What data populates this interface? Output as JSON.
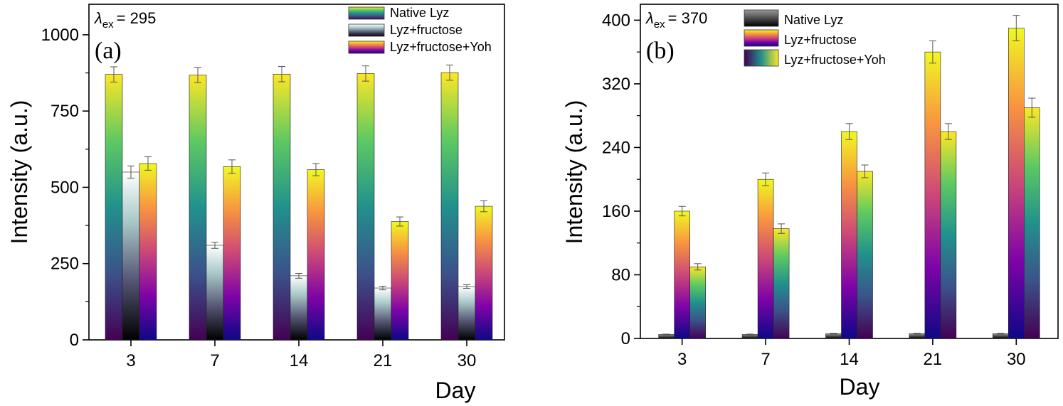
{
  "chart_data": [
    {
      "type": "bar",
      "panel_label": "(a)",
      "excitation": {
        "symbol": "λ",
        "subscript": "ex",
        "value": "= 295"
      },
      "xlabel": "Day",
      "ylabel": "Intensity (a.u.)",
      "categories": [
        "3",
        "7",
        "14",
        "21",
        "30"
      ],
      "ylim": [
        0,
        1100
      ],
      "yticks": [
        "0",
        "250",
        "500",
        "750",
        "1000"
      ],
      "legend_position": "top-right",
      "series": [
        {
          "name": "Native Lyz",
          "values": [
            870,
            868,
            871,
            873,
            876
          ],
          "errors": [
            25,
            25,
            25,
            25,
            25
          ],
          "colormap": "viridis"
        },
        {
          "name": "Lyz+fructose",
          "values": [
            550,
            310,
            210,
            170,
            175
          ],
          "errors": [
            20,
            10,
            8,
            6,
            6
          ],
          "colormap": "bone"
        },
        {
          "name": "Lyz+fructose+Yoh",
          "values": [
            578,
            568,
            558,
            388,
            438
          ],
          "errors": [
            22,
            22,
            20,
            15,
            18
          ],
          "colormap": "plasma"
        }
      ]
    },
    {
      "type": "bar",
      "panel_label": "(b)",
      "excitation": {
        "symbol": "λ",
        "subscript": "ex",
        "value": "= 370"
      },
      "xlabel": "Day",
      "ylabel": "Intensity (a.u.)",
      "categories": [
        "3",
        "7",
        "14",
        "21",
        "30"
      ],
      "ylim": [
        0,
        420
      ],
      "yticks": [
        "0",
        "80",
        "160",
        "240",
        "320",
        "400"
      ],
      "legend_position": "top-left",
      "series": [
        {
          "name": "Native Lyz",
          "values": [
            5,
            5,
            6,
            6,
            6
          ],
          "errors": [
            0.5,
            0.5,
            0.5,
            0.5,
            0.5
          ],
          "colormap": "gray"
        },
        {
          "name": "Lyz+fructose",
          "values": [
            160,
            200,
            260,
            360,
            390
          ],
          "errors": [
            6,
            8,
            10,
            14,
            16
          ],
          "colormap": "plasma"
        },
        {
          "name": "Lyz+fructose+Yoh",
          "values": [
            90,
            138,
            210,
            260,
            290
          ],
          "errors": [
            4,
            6,
            8,
            10,
            12
          ],
          "colormap": "viridis"
        }
      ]
    }
  ]
}
